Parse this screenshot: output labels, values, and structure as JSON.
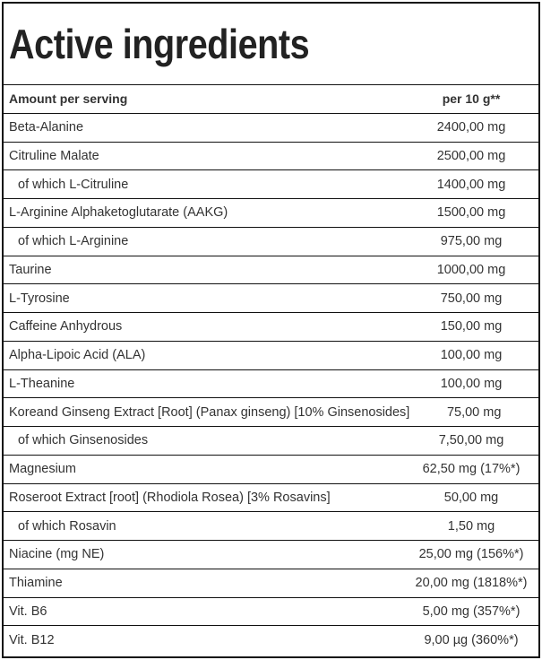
{
  "header": {
    "title": "Active ingredients"
  },
  "table": {
    "columns": [
      "Amount per serving",
      "per 10 g**"
    ],
    "rows": [
      [
        "Beta-Alanine",
        "2400,00 mg"
      ],
      [
        "Citruline Malate",
        "2500,00 mg"
      ],
      [
        "of which L-Citruline",
        "1400,00 mg"
      ],
      [
        "L-Arginine Alphaketoglutarate (AAKG)",
        "1500,00 mg"
      ],
      [
        "of which L-Arginine",
        "975,00 mg"
      ],
      [
        "Taurine",
        "1000,00 mg"
      ],
      [
        "L-Tyrosine",
        "750,00 mg"
      ],
      [
        "Caffeine Anhydrous",
        "150,00 mg"
      ],
      [
        "Alpha-Lipoic Acid (ALA)",
        "100,00 mg"
      ],
      [
        "L-Theanine",
        "100,00 mg"
      ],
      [
        "Koreand Ginseng Extract [Root] (Panax ginseng) [10% Ginsenosides]",
        "75,00 mg"
      ],
      [
        "of which Ginsenosides",
        "7,50,00 mg"
      ],
      [
        "Magnesium",
        "62,50 mg (17%*)"
      ],
      [
        "Roseroot Extract [root] (Rhodiola Rosea) [3% Rosavins]",
        "50,00 mg"
      ],
      [
        "of which Rosavin",
        "1,50 mg"
      ],
      [
        "Niacine (mg NE)",
        "25,00 mg (156%*)"
      ],
      [
        "Thiamine",
        "20,00 mg (1818%*)"
      ],
      [
        "Vit. B6",
        "5,00 mg (357%*)"
      ],
      [
        "Vit. B12",
        "9,00 µg (360%*)"
      ]
    ]
  }
}
